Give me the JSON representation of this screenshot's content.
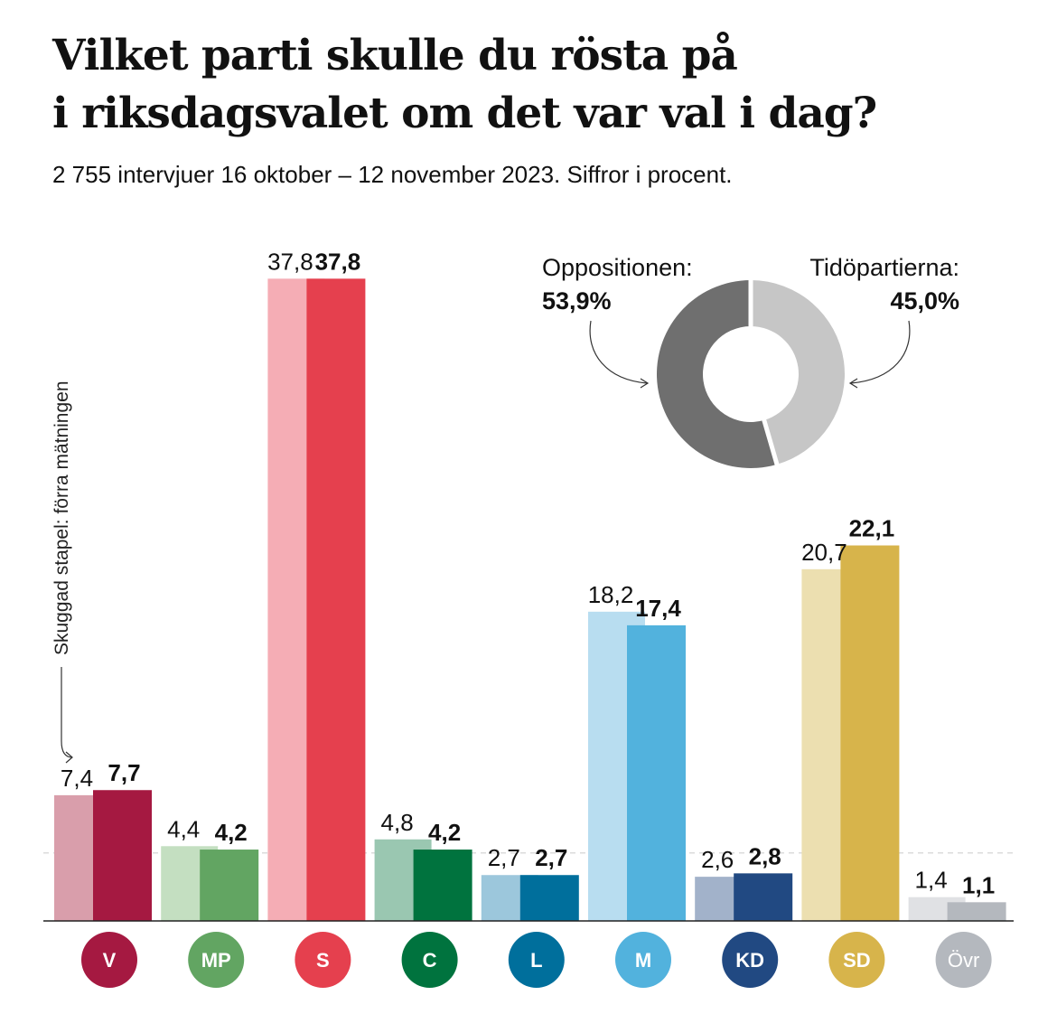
{
  "header": {
    "title_line1": "Vilket parti skulle du rösta på",
    "title_line2": "i riksdagsvalet om det var val i dag?",
    "subtitle": "2 755 intervjuer 16 oktober – 12 november 2023. Siffror i procent."
  },
  "note": "Skuggad stapel: förra mätningen",
  "chart_data": [
    {
      "type": "bar",
      "categories": [
        "V",
        "MP",
        "S",
        "C",
        "L",
        "M",
        "KD",
        "SD",
        "Övr"
      ],
      "series": [
        {
          "name": "Skuggad stapel: förra mätningen",
          "values": [
            7.4,
            4.4,
            37.8,
            4.8,
            2.7,
            18.2,
            2.6,
            20.7,
            1.4
          ],
          "labels": [
            "7,4",
            "4,4",
            "37,8",
            "4,8",
            "2,7",
            "18,2",
            "2,6",
            "20,7",
            "1,4"
          ]
        },
        {
          "values": [
            7.7,
            4.2,
            37.8,
            4.2,
            2.7,
            17.4,
            2.8,
            22.1,
            1.1
          ],
          "labels": [
            "7,7",
            "4,2",
            "37,8",
            "4,2",
            "2,7",
            "17,4",
            "2,8",
            "22,1",
            "1,1"
          ]
        }
      ],
      "colors_current": [
        "#a51941",
        "#62a562",
        "#e5404e",
        "#00733e",
        "#006f9c",
        "#52b2dd",
        "#214982",
        "#d7b44b",
        "#b4b8be"
      ],
      "colors_previous": [
        "#d99eab",
        "#c4dfc1",
        "#f5adb5",
        "#9ac7b1",
        "#9cc7dc",
        "#b8ddf0",
        "#a2b2ca",
        "#ecdfb0",
        "#e0e1e4"
      ],
      "reference_line": 4,
      "ylim": [
        0,
        38
      ],
      "grid": false,
      "xlabel": "",
      "ylabel": ""
    },
    {
      "type": "pie",
      "categories": [
        "Oppositionen:",
        "Tidöpartierna:"
      ],
      "values": [
        53.9,
        45.0
      ],
      "labels": [
        "53,9%",
        "45,0%"
      ],
      "colors": [
        "#6f6f6f",
        "#c6c6c6"
      ],
      "gap_color": "#ffffff"
    }
  ]
}
